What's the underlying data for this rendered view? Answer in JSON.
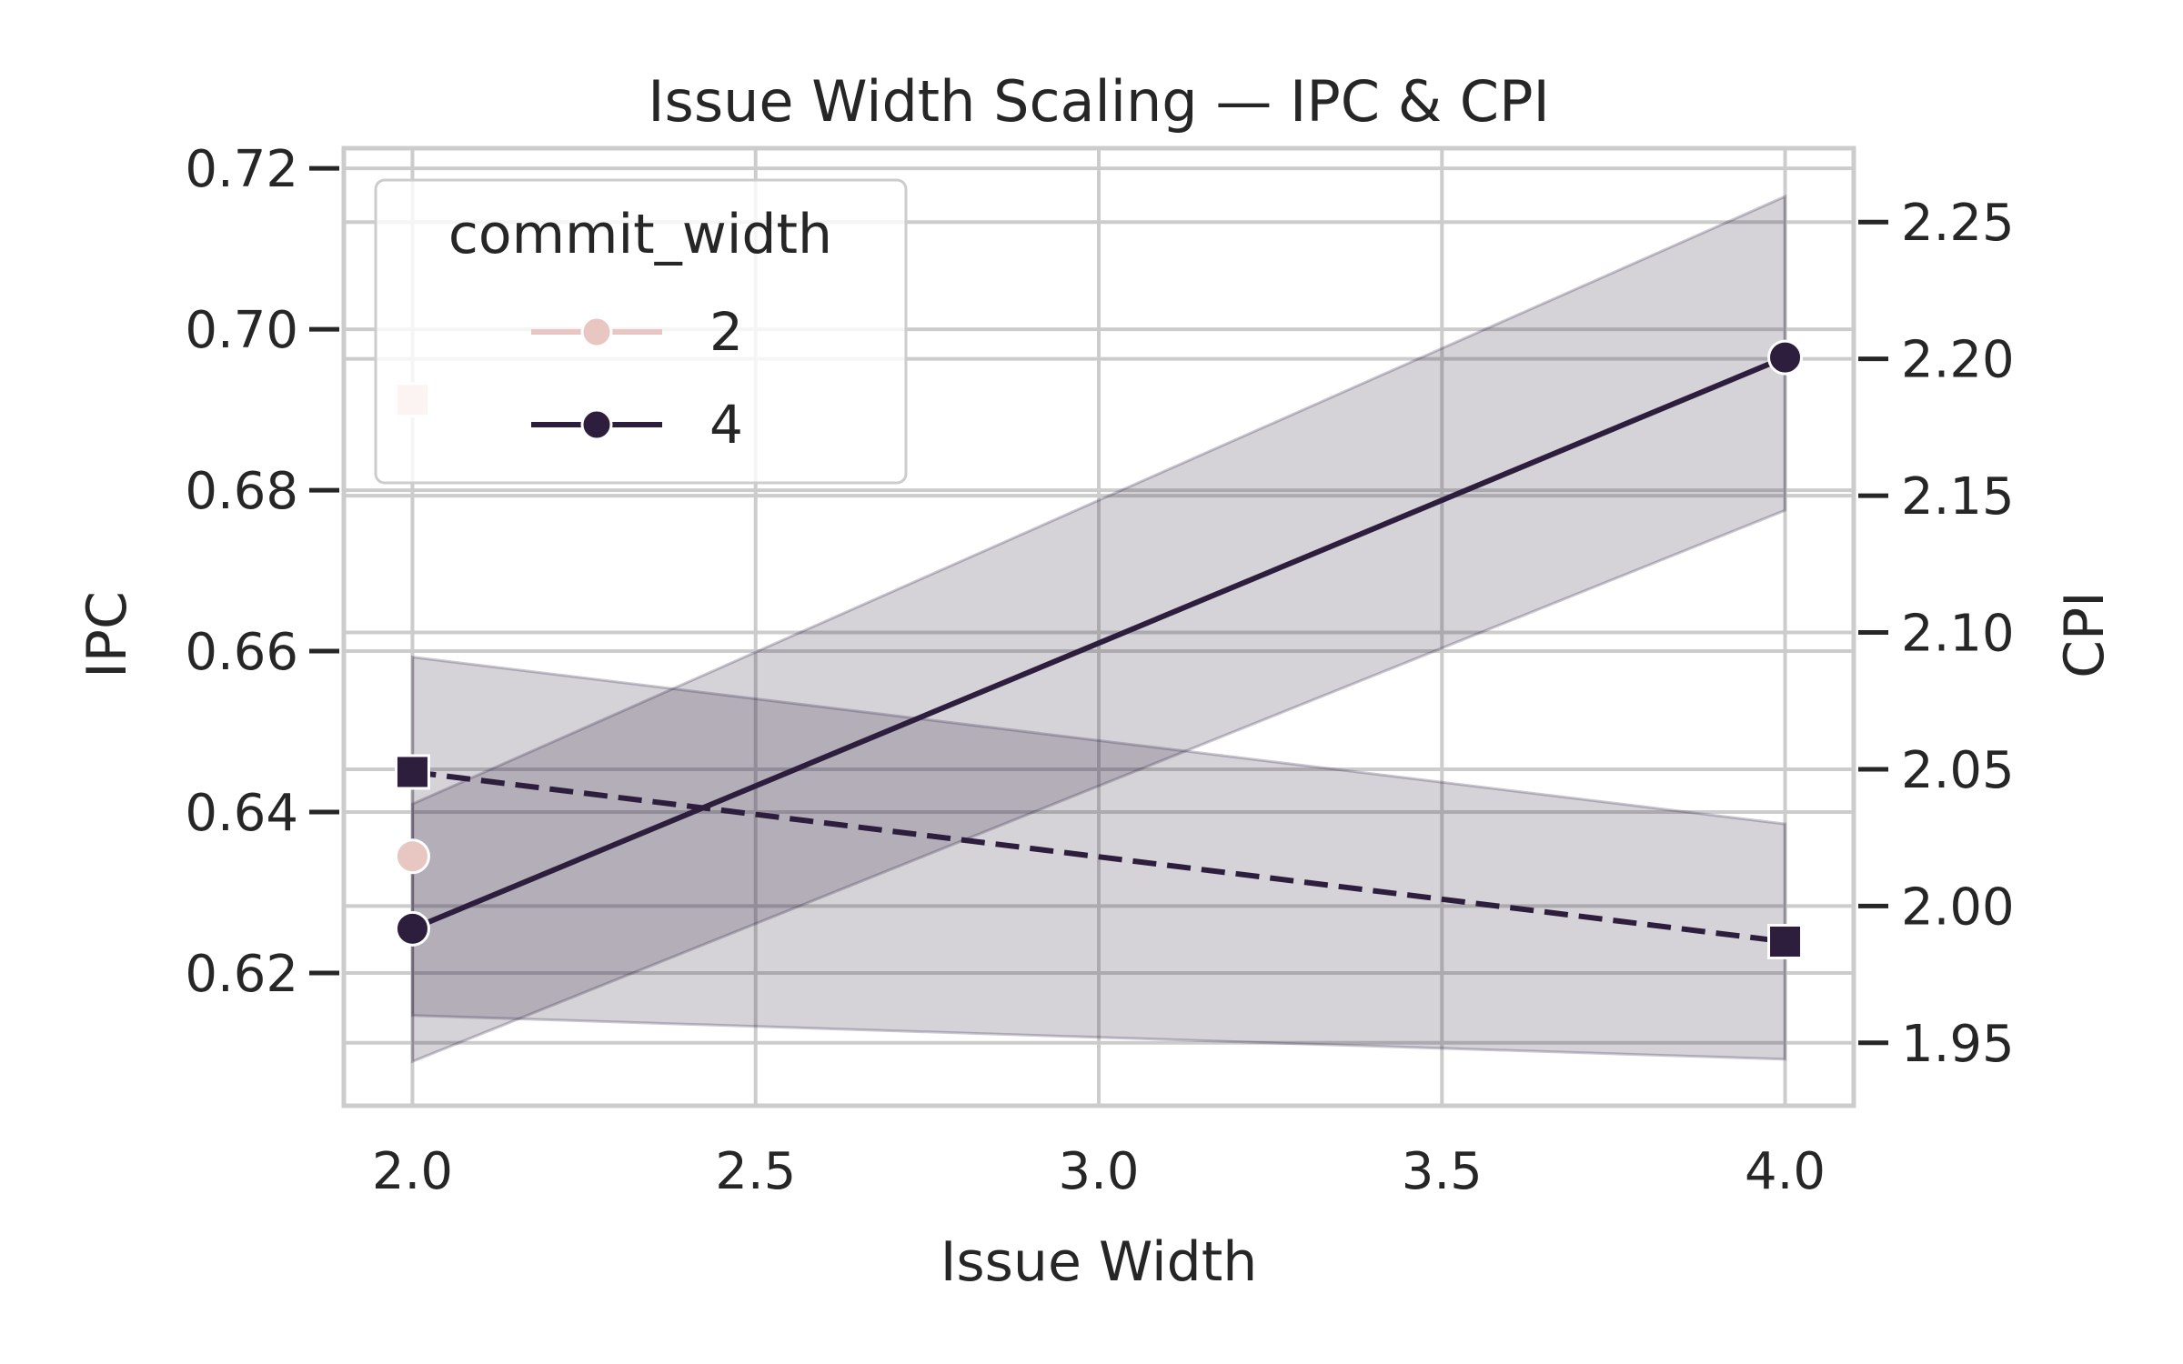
{
  "chart_data": {
    "type": "line",
    "title": "Issue Width Scaling — IPC & CPI",
    "xlabel": "Issue Width",
    "ylabel_left": "IPC",
    "ylabel_right": "CPI",
    "xlim": [
      1.9,
      4.1
    ],
    "ylim_left": [
      0.6035,
      0.7225
    ],
    "ylim_right": [
      1.927,
      2.277
    ],
    "x_ticks": [
      "2.0",
      "2.5",
      "3.0",
      "3.5",
      "4.0"
    ],
    "y_left_ticks": [
      "0.62",
      "0.64",
      "0.66",
      "0.68",
      "0.70",
      "0.72"
    ],
    "y_right_ticks": [
      "1.95",
      "2.00",
      "2.05",
      "2.10",
      "2.15",
      "2.20",
      "2.25"
    ],
    "grid": true,
    "legend": {
      "title": "commit_width",
      "placement": "top-left",
      "entries": [
        {
          "label": "2",
          "color": "#e8c7c2"
        },
        {
          "label": "4",
          "color": "#2d1e3e"
        }
      ]
    },
    "series": [
      {
        "metric": "IPC",
        "axis": "left",
        "commit_width": "2",
        "color": "#e8c7c2",
        "marker": "circle",
        "x": [
          2.0
        ],
        "values": [
          0.6345
        ]
      },
      {
        "metric": "IPC",
        "axis": "left",
        "commit_width": "4",
        "color": "#2d1e3e",
        "marker": "circle",
        "linestyle": "solid",
        "x": [
          2.0,
          4.0
        ],
        "values": [
          0.6255,
          0.6965
        ],
        "ci_low": [
          0.609,
          0.6775
        ],
        "ci_high": [
          0.641,
          0.7165
        ]
      },
      {
        "metric": "CPI",
        "axis": "right",
        "commit_width": "2",
        "color": "#e8c7c2",
        "marker": "square",
        "x": [
          2.0
        ],
        "values": [
          2.185
        ]
      },
      {
        "metric": "CPI",
        "axis": "right",
        "commit_width": "4",
        "color": "#2d1e3e",
        "marker": "square",
        "linestyle": "dashed",
        "x": [
          2.0,
          4.0
        ],
        "values": [
          2.049,
          1.987
        ],
        "ci_low": [
          1.96,
          1.944
        ],
        "ci_high": [
          2.091,
          2.03
        ]
      }
    ]
  }
}
